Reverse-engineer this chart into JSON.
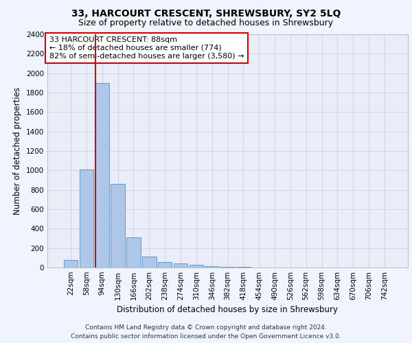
{
  "title": "33, HARCOURT CRESCENT, SHREWSBURY, SY2 5LQ",
  "subtitle": "Size of property relative to detached houses in Shrewsbury",
  "xlabel": "Distribution of detached houses by size in Shrewsbury",
  "ylabel": "Number of detached properties",
  "footer_line1": "Contains HM Land Registry data © Crown copyright and database right 2024.",
  "footer_line2": "Contains public sector information licensed under the Open Government Licence v3.0.",
  "annotation_title": "33 HARCOURT CRESCENT: 88sqm",
  "annotation_line1": "← 18% of detached houses are smaller (774)",
  "annotation_line2": "82% of semi-detached houses are larger (3,580) →",
  "bar_labels": [
    "22sqm",
    "58sqm",
    "94sqm",
    "130sqm",
    "166sqm",
    "202sqm",
    "238sqm",
    "274sqm",
    "310sqm",
    "346sqm",
    "382sqm",
    "418sqm",
    "454sqm",
    "490sqm",
    "526sqm",
    "562sqm",
    "598sqm",
    "634sqm",
    "670sqm",
    "706sqm",
    "742sqm"
  ],
  "bar_values": [
    80,
    1010,
    1900,
    860,
    310,
    110,
    55,
    45,
    30,
    15,
    10,
    5,
    0,
    0,
    0,
    0,
    0,
    0,
    0,
    0,
    0
  ],
  "red_line_x": 2,
  "bar_color": "#aec6e8",
  "bar_edge_color": "#5b9bd5",
  "red_line_color": "#cc0000",
  "annotation_box_edge_color": "#cc0000",
  "background_color": "#f0f4ff",
  "plot_bg_color": "#e8edf8",
  "grid_color": "#c8d0e8",
  "ylim": [
    0,
    2400
  ],
  "yticks": [
    0,
    200,
    400,
    600,
    800,
    1000,
    1200,
    1400,
    1600,
    1800,
    2000,
    2200,
    2400
  ],
  "title_fontsize": 10,
  "subtitle_fontsize": 9,
  "xlabel_fontsize": 8.5,
  "ylabel_fontsize": 8.5,
  "tick_fontsize": 7.5,
  "annotation_fontsize": 8,
  "footer_fontsize": 6.5
}
